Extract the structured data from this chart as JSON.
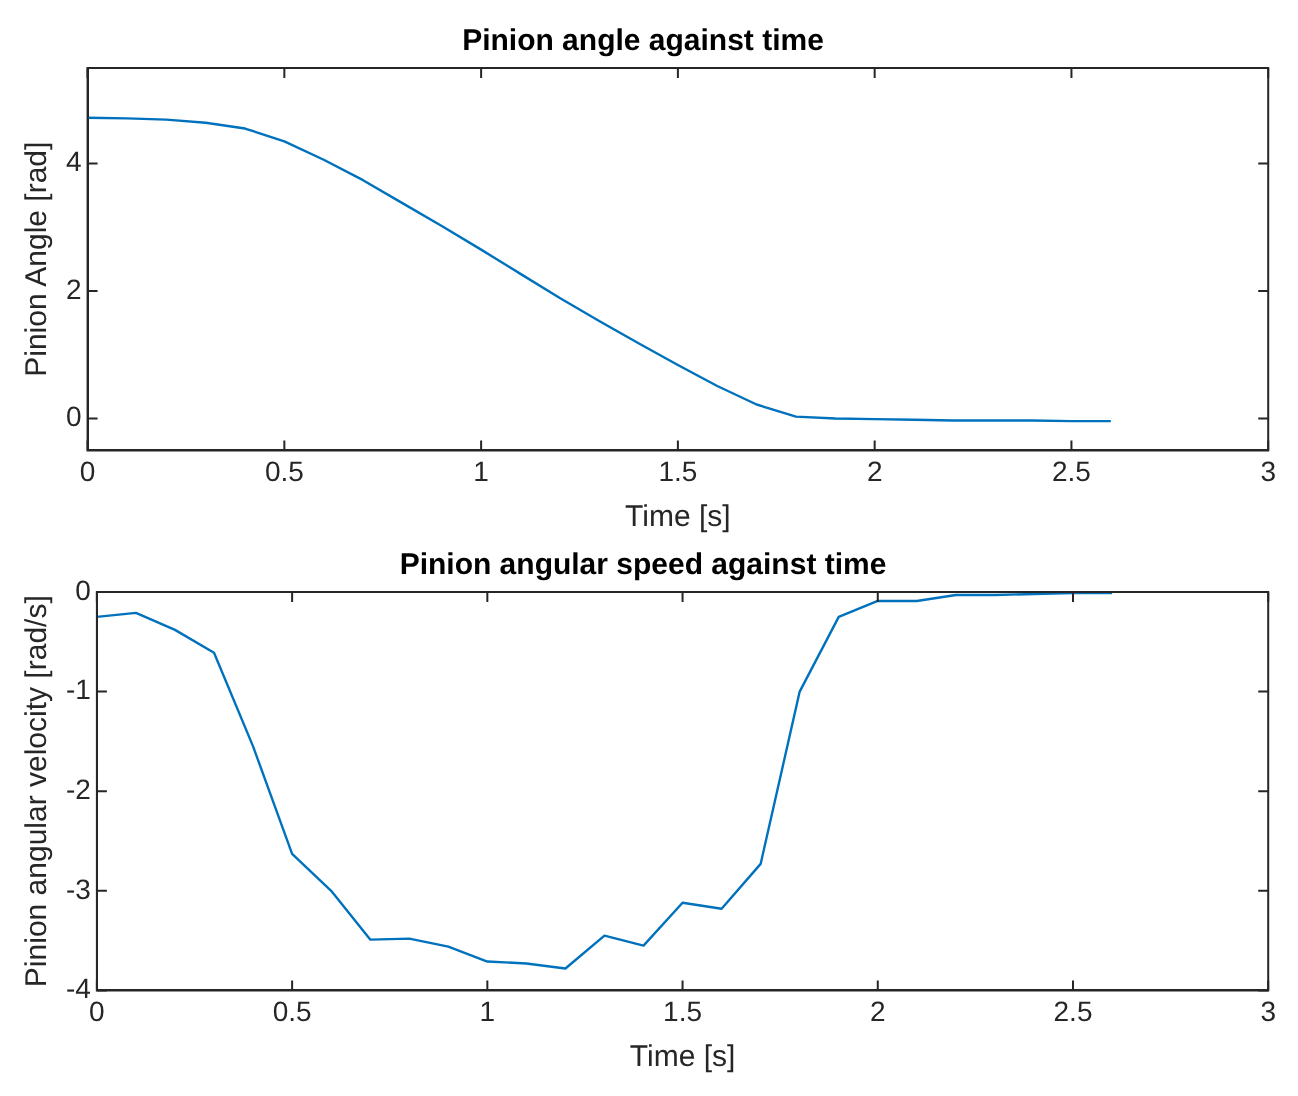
{
  "chart_data": [
    {
      "type": "line",
      "title": "Pinion angle against time",
      "xlabel": "Time [s]",
      "ylabel": "Pinion Angle [rad]",
      "x": [
        0,
        0.1,
        0.2,
        0.3,
        0.4,
        0.5,
        0.6,
        0.7,
        0.8,
        0.9,
        1.0,
        1.1,
        1.2,
        1.3,
        1.4,
        1.5,
        1.6,
        1.7,
        1.8,
        1.9,
        2.0,
        2.1,
        2.2,
        2.3,
        2.4,
        2.5,
        2.6
      ],
      "series": [
        {
          "color": "#0072bd",
          "values": [
            4.72,
            4.71,
            4.69,
            4.64,
            4.55,
            4.35,
            4.06,
            3.74,
            3.38,
            3.02,
            2.65,
            2.27,
            1.89,
            1.53,
            1.18,
            0.84,
            0.51,
            0.22,
            0.03,
            0.0,
            -0.01,
            -0.02,
            -0.03,
            -0.03,
            -0.03,
            -0.04,
            -0.04
          ]
        }
      ],
      "xlim": [
        0,
        3
      ],
      "xticks": [
        0,
        0.5,
        1,
        1.5,
        2,
        2.5,
        3
      ],
      "ylim": [
        -0.5,
        5.5
      ],
      "yticks": [
        0,
        2,
        4
      ],
      "grid": false,
      "legend": false,
      "marker": "none",
      "line_style": "solid"
    },
    {
      "type": "line",
      "title": "Pinion angular speed against time",
      "xlabel": "Time [s]",
      "ylabel": "Pinion angular velocity [rad/s]",
      "x": [
        0,
        0.1,
        0.2,
        0.3,
        0.4,
        0.5,
        0.6,
        0.7,
        0.8,
        0.9,
        1.0,
        1.1,
        1.2,
        1.3,
        1.4,
        1.5,
        1.6,
        1.7,
        1.8,
        1.9,
        2.0,
        2.1,
        2.2,
        2.3,
        2.4,
        2.5,
        2.6
      ],
      "series": [
        {
          "color": "#0072bd",
          "values": [
            -0.25,
            -0.21,
            -0.38,
            -0.61,
            -1.55,
            -2.63,
            -3.0,
            -3.49,
            -3.48,
            -3.56,
            -3.71,
            -3.73,
            -3.78,
            -3.45,
            -3.55,
            -3.12,
            -3.18,
            -2.73,
            -1.0,
            -0.25,
            -0.09,
            -0.09,
            -0.03,
            -0.03,
            -0.02,
            -0.01,
            -0.01
          ]
        }
      ],
      "xlim": [
        0,
        3
      ],
      "xticks": [
        0,
        0.5,
        1,
        1.5,
        2,
        2.5,
        3
      ],
      "ylim": [
        -4,
        0
      ],
      "yticks": [
        -4,
        -3,
        -2,
        -1,
        0
      ],
      "grid": false,
      "legend": false,
      "marker": "none",
      "line_style": "solid"
    }
  ]
}
